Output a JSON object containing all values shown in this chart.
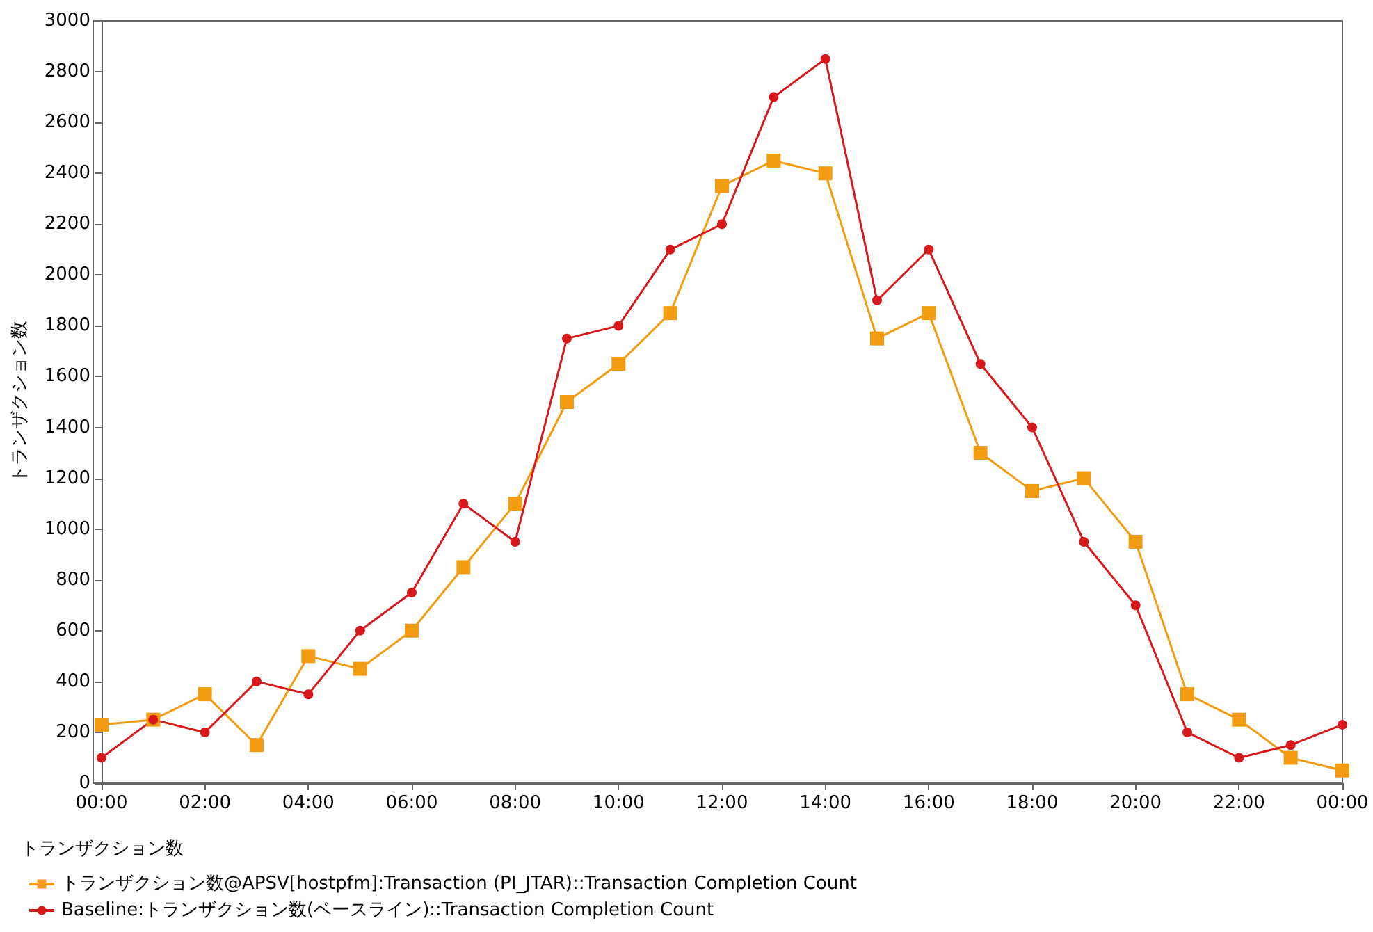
{
  "chart_data": {
    "type": "line",
    "ylabel": "トランザクション数",
    "legend_title": "トランザクション数",
    "x": [
      0,
      1,
      2,
      3,
      4,
      5,
      6,
      7,
      8,
      9,
      10,
      11,
      12,
      13,
      14,
      15,
      16,
      17,
      18,
      19,
      20,
      21,
      22,
      23,
      24
    ],
    "xlim": [
      0,
      24
    ],
    "xticks": [
      {
        "value": 0,
        "label": "00:00"
      },
      {
        "value": 2,
        "label": "02:00"
      },
      {
        "value": 4,
        "label": "04:00"
      },
      {
        "value": 6,
        "label": "06:00"
      },
      {
        "value": 8,
        "label": "08:00"
      },
      {
        "value": 10,
        "label": "10:00"
      },
      {
        "value": 12,
        "label": "12:00"
      },
      {
        "value": 14,
        "label": "14:00"
      },
      {
        "value": 16,
        "label": "16:00"
      },
      {
        "value": 18,
        "label": "18:00"
      },
      {
        "value": 20,
        "label": "20:00"
      },
      {
        "value": 22,
        "label": "22:00"
      },
      {
        "value": 24,
        "label": "00:00"
      }
    ],
    "ylim": [
      0,
      3000
    ],
    "yticks": [
      0,
      200,
      400,
      600,
      800,
      1000,
      1200,
      1400,
      1600,
      1800,
      2000,
      2200,
      2400,
      2600,
      2800,
      3000
    ],
    "series": [
      {
        "name": "トランザクション数@APSV[hostpfm]:Transaction (PI_JTAR)::Transaction Completion Count",
        "color": "#f39c12",
        "marker": "square",
        "values": [
          230,
          250,
          350,
          150,
          500,
          450,
          600,
          850,
          1100,
          1500,
          1650,
          1850,
          2350,
          2450,
          2400,
          1750,
          1850,
          1300,
          1150,
          1200,
          950,
          350,
          250,
          100,
          50
        ]
      },
      {
        "name": "Baseline:トランザクション数(ベースライン)::Transaction Completion Count",
        "color": "#d7191c",
        "marker": "circle",
        "values": [
          100,
          250,
          200,
          400,
          350,
          600,
          750,
          1100,
          950,
          1750,
          1800,
          2100,
          2200,
          2700,
          2850,
          1900,
          2100,
          1650,
          1400,
          950,
          700,
          200,
          100,
          150,
          230
        ]
      }
    ],
    "grid": false,
    "legend": "bottom left",
    "line_style": "solid"
  }
}
